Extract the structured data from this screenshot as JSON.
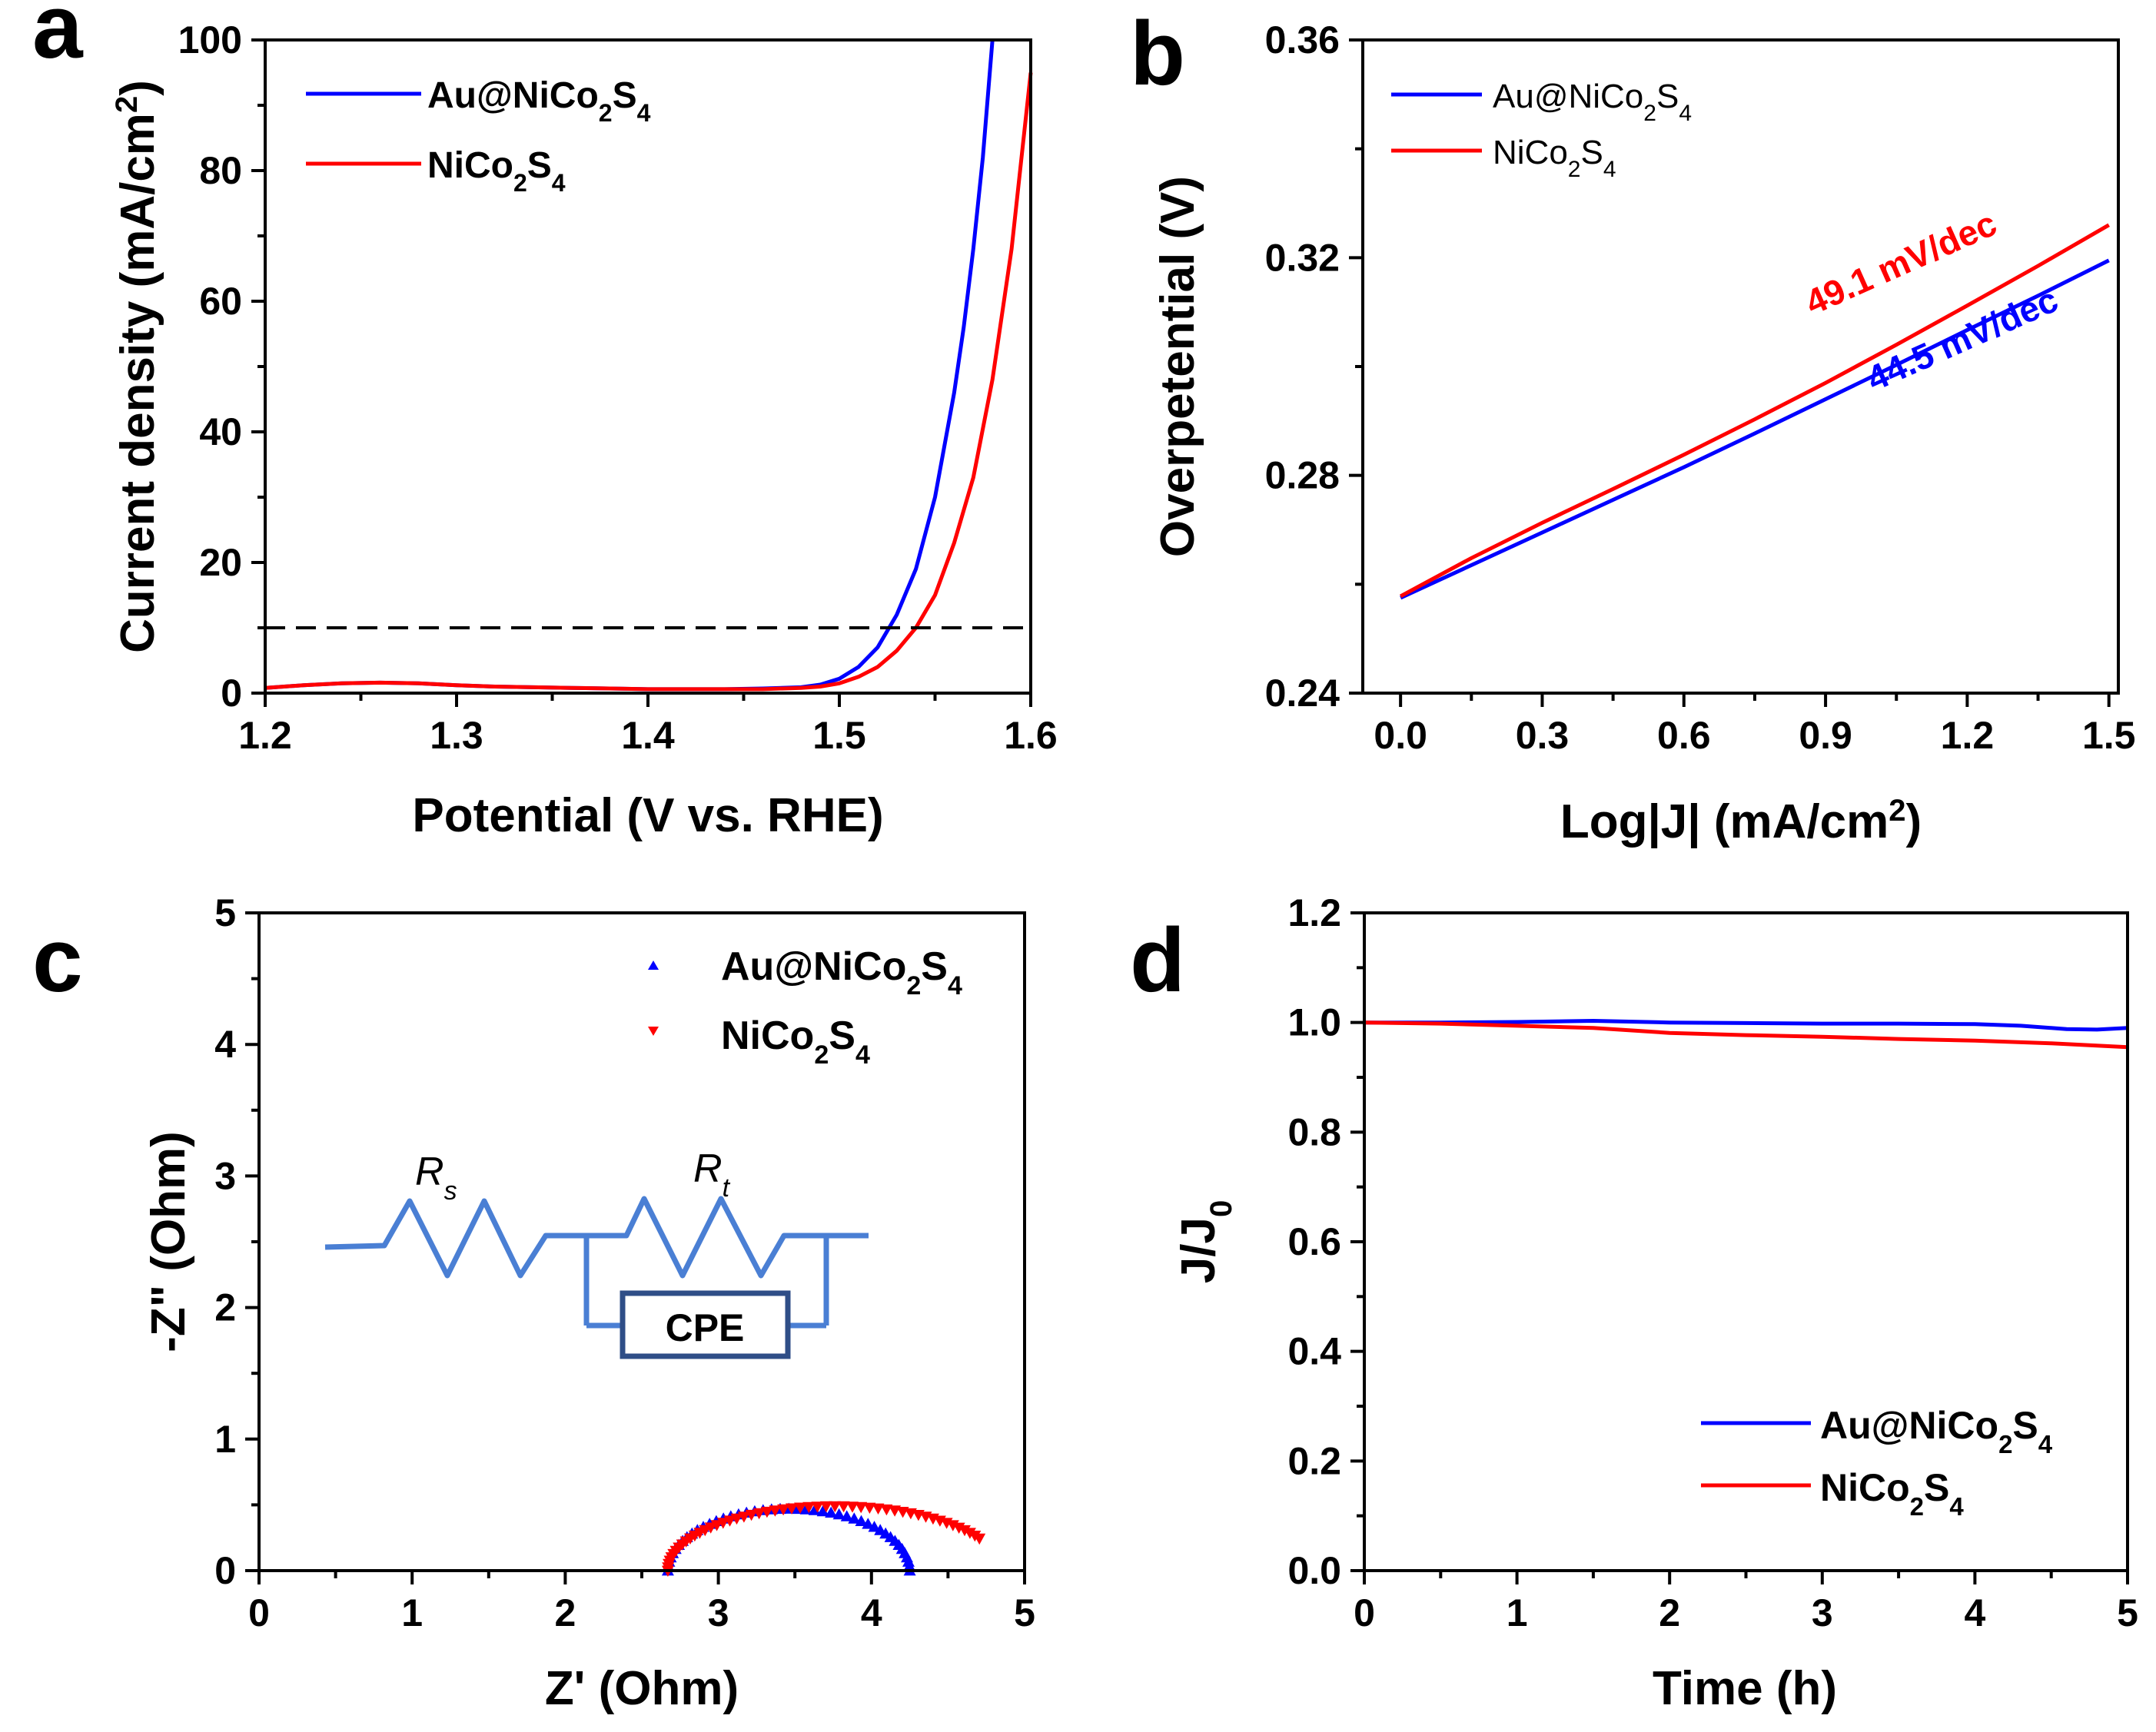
{
  "colors": {
    "blue": "#0000ff",
    "red": "#ff0000",
    "circuit": "#4a7fd4",
    "circuit_box": "#2f4e87",
    "axis": "#000000",
    "dash": "#000000"
  },
  "chart_data": [
    {
      "panel": "a",
      "type": "line",
      "xlabel": "Potential (V vs. RHE)",
      "ylabel_main": "Current density (mA/cm",
      "ylabel_sup": "2",
      "ylabel_tail": ")",
      "xlim": [
        1.2,
        1.6
      ],
      "ylim": [
        0,
        100
      ],
      "xticks": [
        1.2,
        1.3,
        1.4,
        1.5,
        1.6
      ],
      "xtick_labels": [
        "1.2",
        "1.3",
        "1.4",
        "1.5",
        "1.6"
      ],
      "yticks": [
        0,
        20,
        40,
        60,
        80,
        100
      ],
      "ytick_labels": [
        "0",
        "20",
        "40",
        "60",
        "80",
        "100"
      ],
      "reference_line": {
        "y": 10,
        "style": "dashed"
      },
      "legend_position": "top-left",
      "series": [
        {
          "name": "Au@NiCo2S4",
          "legend_main": "Au@NiCo",
          "legend_sub1": "2",
          "legend_mid": "S",
          "legend_sub2": "4",
          "color": "blue",
          "x": [
            1.2,
            1.22,
            1.24,
            1.26,
            1.28,
            1.3,
            1.32,
            1.34,
            1.36,
            1.38,
            1.4,
            1.42,
            1.44,
            1.46,
            1.48,
            1.49,
            1.5,
            1.51,
            1.52,
            1.53,
            1.54,
            1.55,
            1.56,
            1.565,
            1.57,
            1.575,
            1.58
          ],
          "y": [
            0.8,
            1.2,
            1.5,
            1.6,
            1.5,
            1.2,
            1.0,
            0.9,
            0.8,
            0.7,
            0.6,
            0.6,
            0.6,
            0.7,
            0.9,
            1.3,
            2.2,
            4,
            7,
            12,
            19,
            30,
            46,
            56,
            68,
            82,
            100
          ]
        },
        {
          "name": "NiCo2S4",
          "legend_main": "NiCo",
          "legend_sub1": "2",
          "legend_mid": "S",
          "legend_sub2": "4",
          "color": "red",
          "x": [
            1.2,
            1.22,
            1.24,
            1.26,
            1.28,
            1.3,
            1.32,
            1.34,
            1.36,
            1.38,
            1.4,
            1.42,
            1.44,
            1.46,
            1.48,
            1.49,
            1.5,
            1.51,
            1.52,
            1.53,
            1.54,
            1.55,
            1.56,
            1.57,
            1.58,
            1.59,
            1.6
          ],
          "y": [
            0.8,
            1.2,
            1.5,
            1.6,
            1.5,
            1.2,
            1.0,
            0.9,
            0.8,
            0.7,
            0.6,
            0.6,
            0.6,
            0.6,
            0.8,
            1.0,
            1.5,
            2.5,
            4,
            6.5,
            10,
            15,
            23,
            33,
            48,
            68,
            95
          ]
        }
      ]
    },
    {
      "panel": "b",
      "type": "line",
      "xlabel_main": "Log|J| (mA/cm",
      "xlabel_sup": "2",
      "xlabel_tail": ")",
      "ylabel": "Overpetential (V)",
      "xlim": [
        -0.08,
        1.52
      ],
      "ylim": [
        0.24,
        0.36
      ],
      "xticks": [
        0.0,
        0.3,
        0.6,
        0.9,
        1.2,
        1.5
      ],
      "xtick_labels": [
        "0.0",
        "0.3",
        "0.6",
        "0.9",
        "1.2",
        "1.5"
      ],
      "yticks": [
        0.24,
        0.28,
        0.32,
        0.36
      ],
      "ytick_labels": [
        "0.24",
        "0.28",
        "0.32",
        "0.36"
      ],
      "legend_position": "top-left",
      "annotations": [
        {
          "text": "49.1 mV/dec",
          "color": "red",
          "x": 1.07,
          "y": 0.317,
          "angle": -24
        },
        {
          "text": "44.5 mV/dec",
          "color": "blue",
          "x": 1.2,
          "y": 0.303,
          "angle": -24
        }
      ],
      "series": [
        {
          "name": "Au@NiCo2S4",
          "legend_main": "Au@NiCo",
          "legend_sub1": "2",
          "legend_mid": "S",
          "legend_sub2": "4",
          "color": "blue",
          "x": [
            0.0,
            0.15,
            0.3,
            0.45,
            0.6,
            0.75,
            0.9,
            1.05,
            1.2,
            1.35,
            1.5
          ],
          "y": [
            0.2575,
            0.2635,
            0.2695,
            0.2755,
            0.2815,
            0.2877,
            0.294,
            0.3003,
            0.3067,
            0.313,
            0.3195
          ]
        },
        {
          "name": "NiCo2S4",
          "legend_main": "NiCo",
          "legend_sub1": "2",
          "legend_mid": "S",
          "legend_sub2": "4",
          "color": "red",
          "x": [
            0.0,
            0.15,
            0.3,
            0.45,
            0.6,
            0.75,
            0.9,
            1.05,
            1.2,
            1.35,
            1.5
          ],
          "y": [
            0.2578,
            0.2648,
            0.2713,
            0.2775,
            0.2838,
            0.2903,
            0.297,
            0.304,
            0.3112,
            0.3185,
            0.326
          ]
        }
      ]
    },
    {
      "panel": "c",
      "type": "scatter",
      "xlabel": "Z' (Ohm)",
      "ylabel": "-Z\" (Ohm)",
      "xlim": [
        0,
        5
      ],
      "ylim": [
        0,
        5
      ],
      "xticks": [
        0,
        1,
        2,
        3,
        4,
        5
      ],
      "xtick_labels": [
        "0",
        "1",
        "2",
        "3",
        "4",
        "5"
      ],
      "yticks": [
        0,
        1,
        2,
        3,
        4,
        5
      ],
      "ytick_labels": [
        "0",
        "1",
        "2",
        "3",
        "4",
        "5"
      ],
      "legend_position": "top-right",
      "inset_circuit": {
        "labels": [
          "R",
          "R"
        ],
        "subs": [
          "s",
          "t"
        ],
        "element": "CPE"
      },
      "series": [
        {
          "name": "Au@NiCo2S4",
          "legend_main": "Au@NiCo",
          "legend_sub1": "2",
          "legend_mid": "S",
          "legend_sub2": "4",
          "color": "blue",
          "marker": "triangle-up",
          "arc": {
            "x_start": 2.67,
            "x_end": 4.25,
            "peak": 0.47,
            "points": 44
          }
        },
        {
          "name": "NiCo2S4",
          "legend_main": "NiCo",
          "legend_sub1": "2",
          "legend_mid": "S",
          "legend_sub2": "4",
          "color": "red",
          "marker": "triangle-down",
          "arc": {
            "x_start": 2.67,
            "x_end": 4.85,
            "peak": 0.49,
            "theta_end": 2.62,
            "points": 50
          }
        }
      ]
    },
    {
      "panel": "d",
      "type": "line",
      "xlabel": "Time (h)",
      "ylabel_main": "J/J",
      "ylabel_sub": "0",
      "xlim": [
        0,
        5
      ],
      "ylim": [
        0.0,
        1.2
      ],
      "xticks": [
        0,
        1,
        2,
        3,
        4,
        5
      ],
      "xtick_labels": [
        "0",
        "1",
        "2",
        "3",
        "4",
        "5"
      ],
      "yticks": [
        0.0,
        0.2,
        0.4,
        0.6,
        0.8,
        1.0,
        1.2
      ],
      "ytick_labels": [
        "0.0",
        "0.2",
        "0.4",
        "0.6",
        "0.8",
        "1.0",
        "1.2"
      ],
      "legend_position": "bottom-right",
      "series": [
        {
          "name": "Au@NiCo2S4",
          "legend_main": "Au@NiCo",
          "legend_sub1": "2",
          "legend_mid": "S",
          "legend_sub2": "4",
          "color": "blue",
          "x": [
            0,
            0.5,
            1.0,
            1.5,
            2.0,
            2.5,
            3.0,
            3.5,
            4.0,
            4.3,
            4.6,
            4.8,
            5.0
          ],
          "y": [
            1.0,
            1.0,
            1.001,
            1.003,
            1.0,
            0.999,
            0.998,
            0.998,
            0.997,
            0.994,
            0.988,
            0.987,
            0.99
          ]
        },
        {
          "name": "NiCo2S4",
          "legend_main": "NiCo",
          "legend_sub1": "2",
          "legend_mid": "S",
          "legend_sub2": "4",
          "color": "red",
          "x": [
            0,
            0.5,
            1.0,
            1.5,
            2.0,
            2.5,
            3.0,
            3.5,
            4.0,
            4.5,
            5.0
          ],
          "y": [
            1.0,
            0.998,
            0.994,
            0.99,
            0.981,
            0.977,
            0.974,
            0.97,
            0.967,
            0.962,
            0.955
          ]
        }
      ]
    }
  ]
}
